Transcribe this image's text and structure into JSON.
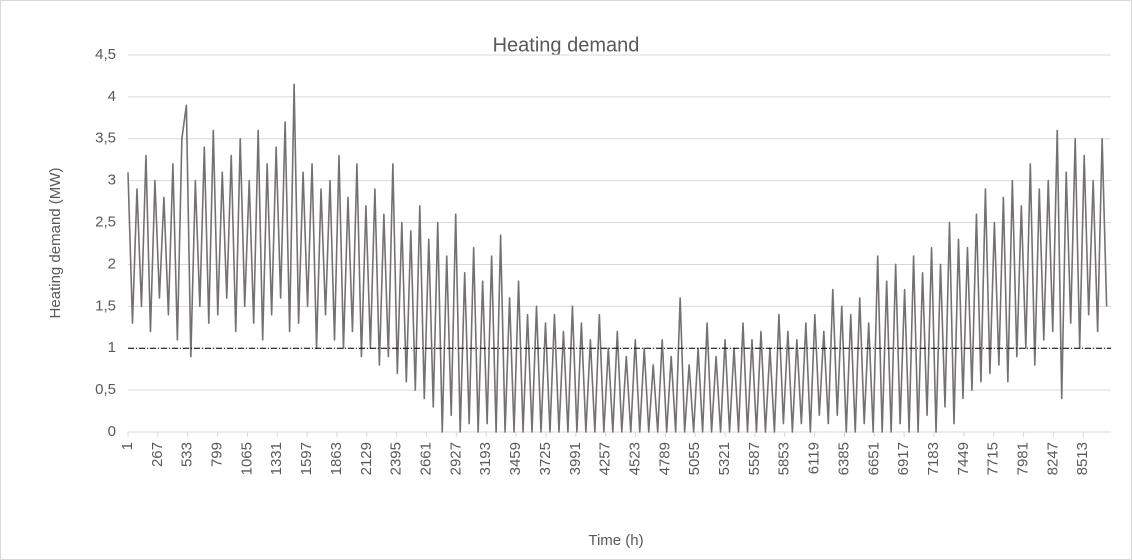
{
  "chart_data": {
    "type": "line",
    "title": "Heating demand",
    "x_label": "Time (h)",
    "y_label": "Heating demand (MW)",
    "x": [
      1,
      41,
      81,
      121,
      161,
      201,
      241,
      281,
      321,
      361,
      401,
      441,
      481,
      521,
      561,
      601,
      641,
      681,
      721,
      761,
      801,
      841,
      881,
      921,
      961,
      1001,
      1041,
      1081,
      1121,
      1161,
      1201,
      1241,
      1281,
      1321,
      1361,
      1401,
      1441,
      1481,
      1521,
      1561,
      1601,
      1641,
      1681,
      1721,
      1761,
      1801,
      1841,
      1881,
      1921,
      1961,
      2001,
      2041,
      2081,
      2121,
      2161,
      2201,
      2241,
      2281,
      2321,
      2361,
      2401,
      2441,
      2481,
      2521,
      2561,
      2601,
      2641,
      2681,
      2721,
      2761,
      2801,
      2841,
      2881,
      2921,
      2961,
      3001,
      3041,
      3081,
      3121,
      3161,
      3201,
      3241,
      3281,
      3321,
      3361,
      3401,
      3441,
      3481,
      3521,
      3561,
      3601,
      3641,
      3681,
      3721,
      3761,
      3801,
      3841,
      3881,
      3921,
      3961,
      4001,
      4041,
      4081,
      4121,
      4161,
      4201,
      4241,
      4281,
      4321,
      4361,
      4401,
      4441,
      4481,
      4521,
      4561,
      4601,
      4641,
      4681,
      4721,
      4761,
      4801,
      4841,
      4881,
      4921,
      4961,
      5001,
      5041,
      5081,
      5121,
      5161,
      5201,
      5241,
      5281,
      5321,
      5361,
      5401,
      5441,
      5481,
      5521,
      5561,
      5601,
      5641,
      5681,
      5721,
      5761,
      5801,
      5841,
      5881,
      5921,
      5961,
      6001,
      6041,
      6081,
      6121,
      6161,
      6201,
      6241,
      6281,
      6321,
      6361,
      6401,
      6441,
      6481,
      6521,
      6561,
      6601,
      6641,
      6681,
      6721,
      6761,
      6801,
      6841,
      6881,
      6921,
      6961,
      7001,
      7041,
      7081,
      7121,
      7161,
      7201,
      7241,
      7281,
      7321,
      7361,
      7401,
      7441,
      7481,
      7521,
      7561,
      7601,
      7641,
      7681,
      7721,
      7761,
      7801,
      7841,
      7881,
      7921,
      7961,
      8001,
      8041,
      8081,
      8121,
      8161,
      8201,
      8241,
      8281,
      8321,
      8361,
      8401,
      8441,
      8481,
      8521,
      8561,
      8601,
      8641,
      8681,
      8721
    ],
    "series": [
      {
        "name": "Heating demand",
        "color": "#767171",
        "values": [
          3.1,
          1.3,
          2.9,
          1.5,
          3.3,
          1.2,
          3.0,
          1.6,
          2.8,
          1.4,
          3.2,
          1.1,
          3.5,
          3.9,
          0.9,
          3.0,
          1.5,
          3.4,
          1.3,
          3.6,
          1.4,
          3.1,
          1.6,
          3.3,
          1.2,
          3.5,
          1.5,
          3.0,
          1.3,
          3.6,
          1.1,
          3.2,
          1.4,
          3.4,
          1.6,
          3.7,
          1.2,
          4.15,
          1.3,
          3.1,
          1.5,
          3.2,
          1.0,
          2.9,
          1.4,
          3.0,
          1.1,
          3.3,
          1.0,
          2.8,
          1.2,
          3.2,
          0.9,
          2.7,
          1.0,
          2.9,
          0.8,
          2.6,
          0.9,
          3.2,
          0.7,
          2.5,
          0.6,
          2.4,
          0.5,
          2.7,
          0.4,
          2.3,
          0.3,
          2.5,
          0.0,
          2.1,
          0.2,
          2.6,
          0.0,
          1.9,
          0.1,
          2.2,
          0.0,
          1.8,
          0.1,
          2.1,
          0.0,
          2.35,
          0.0,
          1.6,
          0.0,
          1.8,
          0.0,
          1.4,
          0.0,
          1.5,
          0.0,
          1.3,
          0.0,
          1.4,
          0.0,
          1.2,
          0.0,
          1.5,
          0.0,
          1.3,
          0.0,
          1.1,
          0.0,
          1.4,
          0.0,
          1.0,
          0.0,
          1.2,
          0.0,
          0.9,
          0.0,
          1.1,
          0.0,
          1.0,
          0.0,
          0.8,
          0.0,
          1.1,
          0.0,
          0.9,
          0.0,
          1.6,
          0.0,
          0.8,
          0.0,
          1.0,
          0.0,
          1.3,
          0.0,
          0.9,
          0.0,
          1.1,
          0.0,
          1.0,
          0.0,
          1.3,
          0.0,
          1.1,
          0.0,
          1.2,
          0.0,
          1.0,
          0.0,
          1.4,
          0.1,
          1.2,
          0.0,
          1.1,
          0.1,
          1.3,
          0.0,
          1.4,
          0.2,
          1.2,
          0.1,
          1.7,
          0.2,
          1.5,
          0.0,
          1.4,
          0.0,
          1.6,
          0.1,
          1.3,
          0.0,
          2.1,
          0.0,
          1.8,
          0.0,
          2.0,
          0.1,
          1.7,
          0.0,
          2.1,
          0.0,
          1.9,
          0.2,
          2.2,
          0.0,
          2.0,
          0.3,
          2.5,
          0.1,
          2.3,
          0.4,
          2.2,
          0.5,
          2.6,
          0.6,
          2.9,
          0.7,
          2.5,
          0.8,
          2.8,
          0.6,
          3.0,
          0.9,
          2.7,
          1.0,
          3.2,
          0.8,
          2.9,
          1.1,
          3.0,
          1.2,
          3.6,
          0.4,
          3.1,
          1.3,
          3.5,
          1.0,
          3.3,
          1.4,
          3.0,
          1.2,
          3.5,
          1.5
        ]
      }
    ],
    "reference_line": 1,
    "xlim": [
      1,
      8760
    ],
    "xticks": [
      1,
      267,
      533,
      799,
      1065,
      1331,
      1597,
      1863,
      2129,
      2395,
      2661,
      2927,
      3193,
      3459,
      3725,
      3991,
      4257,
      4523,
      4789,
      5055,
      5321,
      5587,
      5853,
      6119,
      6385,
      6651,
      6917,
      7183,
      7449,
      7715,
      7981,
      8247,
      8513
    ],
    "ylim": [
      0,
      4.5
    ],
    "yticks": [
      0,
      {
        "value": 0.5,
        "label": "0,5"
      },
      1,
      {
        "value": 1.5,
        "label": "1,5"
      },
      2,
      {
        "value": 2.5,
        "label": "2,5"
      },
      3,
      {
        "value": 3.5,
        "label": "3,5"
      },
      4,
      {
        "value": 4.5,
        "label": "4,5"
      }
    ],
    "grid": true
  }
}
